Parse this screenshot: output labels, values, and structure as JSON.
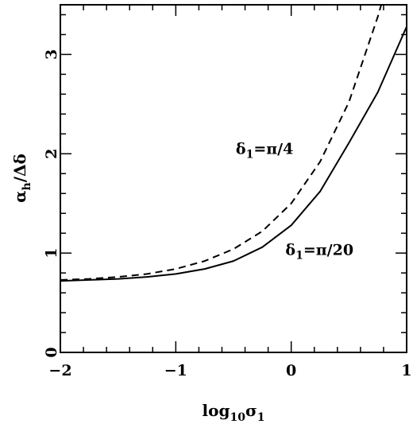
{
  "chart_data": {
    "type": "line",
    "xlabel": {
      "base": "log",
      "sub1": "10",
      "main": "σ",
      "sub2": "1"
    },
    "ylabel": {
      "main": "α",
      "sub": "h",
      "rest": "/Δδ"
    },
    "xlim": [
      -2,
      1
    ],
    "ylim": [
      0,
      3.5
    ],
    "xticks": [
      -2,
      -1,
      0,
      1
    ],
    "xtick_labels": [
      "−2",
      "−1",
      "0",
      "1"
    ],
    "yticks": [
      0,
      1,
      2,
      3
    ],
    "ytick_labels": [
      "0",
      "1",
      "2",
      "3"
    ],
    "grid": false,
    "legend": "none",
    "series": [
      {
        "style": "dashed",
        "x": [
          -2.0,
          -1.75,
          -1.5,
          -1.25,
          -1.0,
          -0.75,
          -0.5,
          -0.25,
          0.0,
          0.25,
          0.5,
          0.75,
          0.78
        ],
        "y": [
          0.73,
          0.74,
          0.76,
          0.79,
          0.84,
          0.92,
          1.04,
          1.22,
          1.5,
          1.92,
          2.52,
          3.38,
          3.5
        ]
      },
      {
        "style": "solid",
        "x": [
          -2.0,
          -1.75,
          -1.5,
          -1.25,
          -1.0,
          -0.75,
          -0.5,
          -0.25,
          0.0,
          0.25,
          0.5,
          0.75,
          1.0
        ],
        "y": [
          0.72,
          0.73,
          0.74,
          0.76,
          0.79,
          0.84,
          0.92,
          1.06,
          1.28,
          1.62,
          2.11,
          2.62,
          3.28
        ]
      }
    ],
    "annotations": [
      {
        "delta": "δ",
        "sub": "1",
        "rest": "=π/4",
        "x": -0.48,
        "y": 2.0
      },
      {
        "delta": "δ",
        "sub": "1",
        "rest": "=π/20",
        "x": -0.05,
        "y": 0.98
      }
    ]
  }
}
